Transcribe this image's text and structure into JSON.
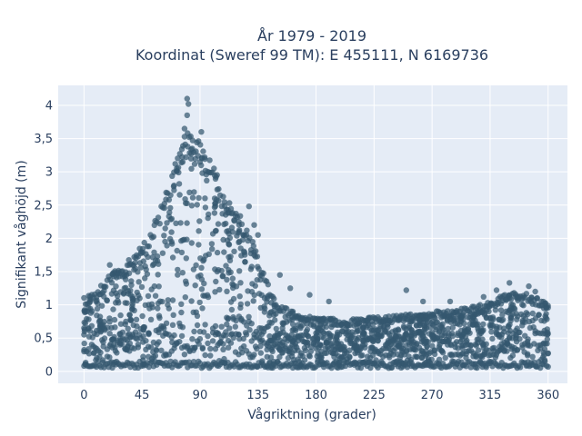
{
  "chart_data": {
    "type": "scatter",
    "title": [
      "År 1979 - 2019",
      "Koordinat (Sweref 99 TM): E 455111, N 6169736"
    ],
    "xlabel": "Vågriktning (grader)",
    "ylabel": "Signifikant våghöjd (m)",
    "xlim": [
      -20,
      375
    ],
    "ylim": [
      -0.18,
      4.3
    ],
    "xticks": [
      0,
      45,
      90,
      135,
      180,
      225,
      270,
      315,
      360
    ],
    "xtick_labels": [
      "0",
      "45",
      "90",
      "135",
      "180",
      "225",
      "270",
      "315",
      "360"
    ],
    "yticks": [
      0,
      0.5,
      1,
      1.5,
      2,
      2.5,
      3,
      3.5,
      4
    ],
    "ytick_labels": [
      "0",
      "0,5",
      "1",
      "1,5",
      "2",
      "2,5",
      "3",
      "3,5",
      "4"
    ],
    "grid": true,
    "marker_color": "#34586f",
    "plot_background": "#e5ecf6",
    "envelope": {
      "direction": [
        0,
        10,
        20,
        30,
        40,
        50,
        60,
        70,
        80,
        90,
        100,
        110,
        120,
        130,
        140,
        150,
        160,
        170,
        180,
        190,
        200,
        210,
        220,
        230,
        240,
        250,
        260,
        270,
        280,
        290,
        300,
        310,
        320,
        330,
        340,
        350,
        360
      ],
      "max_height": [
        1.1,
        1.2,
        1.45,
        1.55,
        1.75,
        2.0,
        2.45,
        3.1,
        3.55,
        3.45,
        3.1,
        2.55,
        2.35,
        2.0,
        1.4,
        1.0,
        0.9,
        0.85,
        0.8,
        0.8,
        0.75,
        0.78,
        0.8,
        0.8,
        0.82,
        0.85,
        0.85,
        0.88,
        0.9,
        0.92,
        0.95,
        1.0,
        1.1,
        1.15,
        1.2,
        1.1,
        1.05
      ]
    },
    "outliers": [
      {
        "x": 80,
        "y": 4.1
      },
      {
        "x": 81,
        "y": 4.02
      },
      {
        "x": 80,
        "y": 3.85
      },
      {
        "x": 78,
        "y": 3.65
      },
      {
        "x": 91,
        "y": 3.6
      },
      {
        "x": 72,
        "y": 3.05
      },
      {
        "x": 128,
        "y": 2.48
      },
      {
        "x": 132,
        "y": 2.2
      },
      {
        "x": 135,
        "y": 2.05
      },
      {
        "x": 20,
        "y": 1.6
      },
      {
        "x": 35,
        "y": 1.6
      },
      {
        "x": 152,
        "y": 1.45
      },
      {
        "x": 160,
        "y": 1.25
      },
      {
        "x": 175,
        "y": 1.15
      },
      {
        "x": 190,
        "y": 1.05
      },
      {
        "x": 250,
        "y": 1.22
      },
      {
        "x": 263,
        "y": 1.05
      },
      {
        "x": 284,
        "y": 1.05
      },
      {
        "x": 310,
        "y": 1.12
      },
      {
        "x": 320,
        "y": 1.22
      },
      {
        "x": 330,
        "y": 1.33
      },
      {
        "x": 345,
        "y": 1.28
      },
      {
        "x": 350,
        "y": 1.2
      }
    ]
  }
}
